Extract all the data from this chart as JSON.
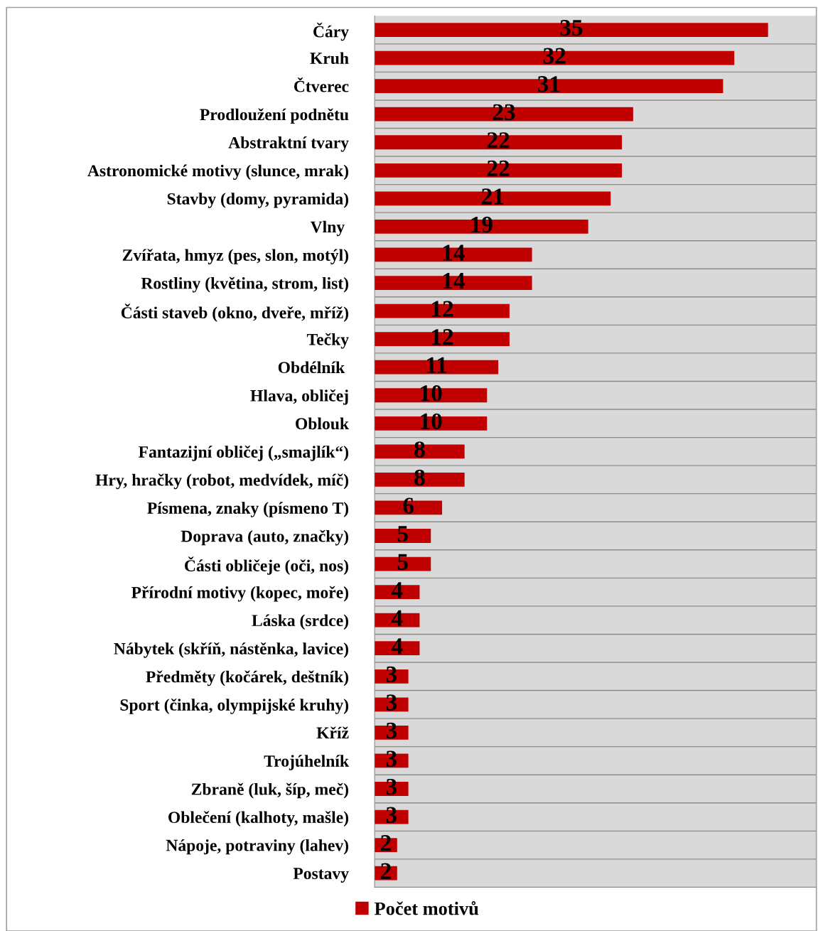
{
  "chart_data": {
    "type": "bar",
    "orientation": "horizontal",
    "categories": [
      "Čáry",
      "Kruh",
      "Čtverec",
      "Prodloužení podnětu",
      "Abstraktní tvary",
      "Astronomické motivy (slunce, mrak)",
      "Stavby (domy, pyramida)",
      "Vlny ",
      "Zvířata, hmyz (pes, slon, motýl)",
      "Rostliny (květina, strom, list)",
      "Části staveb (okno, dveře, mříž)",
      "Tečky",
      "Obdélník ",
      "Hlava, obličej",
      "Oblouk",
      "Fantazijní obličej („smajlík“)",
      "Hry, hračky (robot, medvídek, míč)",
      "Písmena, znaky (písmeno T)",
      "Doprava (auto, značky)",
      "Části obličeje (oči, nos)",
      "Přírodní motivy (kopec, moře)",
      "Láska (srdce)",
      "Nábytek (skříň, nástěnka, lavice)",
      "Předměty (kočárek, deštník)",
      "Sport (činka, olympijské kruhy)",
      "Kříž",
      "Trojúhelník",
      "Zbraně (luk, šíp, meč)",
      "Oblečení (kalhoty, mašle)",
      "Nápoje, potraviny (lahev)",
      "Postavy"
    ],
    "series": [
      {
        "name": "Počet motivů",
        "color": "#c00000",
        "values": [
          35,
          32,
          31,
          23,
          22,
          22,
          21,
          19,
          14,
          14,
          12,
          12,
          11,
          10,
          10,
          8,
          8,
          6,
          5,
          5,
          4,
          4,
          4,
          3,
          3,
          3,
          3,
          3,
          3,
          2,
          2
        ]
      }
    ],
    "xlim": [
      0,
      39.3
    ],
    "data_labels": true,
    "grid": "y",
    "legend": "bottom"
  }
}
